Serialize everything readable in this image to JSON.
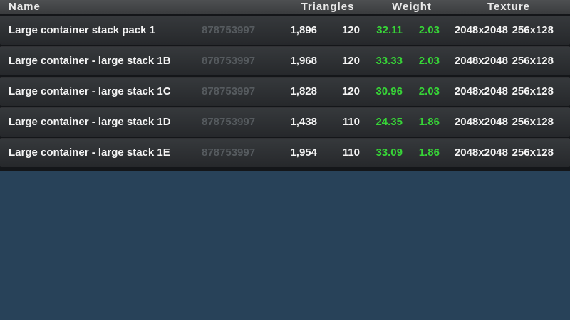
{
  "colors": {
    "page_background": "#284259",
    "header_background": "#45474a",
    "row_background_top": "#36393c",
    "row_background_bottom": "#26282b",
    "text_primary": "#f4f4f4",
    "text_id_muted": "#565b5f",
    "weight_green": "#37d437"
  },
  "table": {
    "headers": {
      "name": "Name",
      "triangles": "Triangles",
      "weight": "Weight",
      "texture": "Texture"
    },
    "rows": [
      {
        "name": "Large container stack pack 1",
        "id": "878753997",
        "triangles": "1,896",
        "lod_triangles": "120",
        "weight": "32.11",
        "lod_weight": "2.03",
        "texture": "2048x2048",
        "lod_texture": "256x128"
      },
      {
        "name": "Large container - large stack 1B",
        "id": "878753997",
        "triangles": "1,968",
        "lod_triangles": "120",
        "weight": "33.33",
        "lod_weight": "2.03",
        "texture": "2048x2048",
        "lod_texture": "256x128"
      },
      {
        "name": "Large container - large stack 1C",
        "id": "878753997",
        "triangles": "1,828",
        "lod_triangles": "120",
        "weight": "30.96",
        "lod_weight": "2.03",
        "texture": "2048x2048",
        "lod_texture": "256x128"
      },
      {
        "name": "Large container - large stack 1D",
        "id": "878753997",
        "triangles": "1,438",
        "lod_triangles": "110",
        "weight": "24.35",
        "lod_weight": "1.86",
        "texture": "2048x2048",
        "lod_texture": "256x128"
      },
      {
        "name": "Large container - large stack 1E",
        "id": "878753997",
        "triangles": "1,954",
        "lod_triangles": "110",
        "weight": "33.09",
        "lod_weight": "1.86",
        "texture": "2048x2048",
        "lod_texture": "256x128"
      }
    ]
  }
}
